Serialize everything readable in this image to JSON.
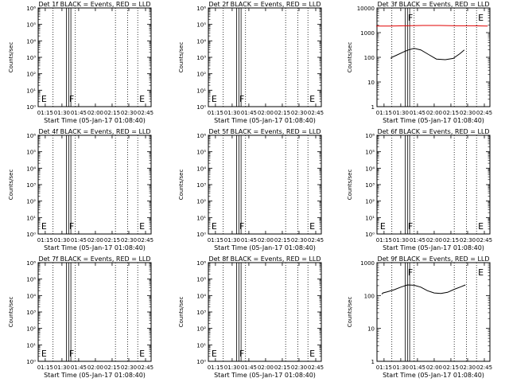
{
  "chart_data": [
    {
      "type": "line",
      "title": "Det 1f BLACK = Events, RED = LLD",
      "xlabel": "Start Time (05-Jan-17 01:08:40)",
      "ylabel": "Counts/sec",
      "yscale": "log",
      "ylim": [
        1,
        1000000
      ],
      "ytick_labels": [
        "10⁰",
        "10¹",
        "10²",
        "10³",
        "10⁴",
        "10⁵",
        "10⁶"
      ],
      "xtick_labels": [
        "01:15",
        "01:30",
        "01:45",
        "02:00",
        "02:15",
        "02:30",
        "02:45"
      ],
      "markers": [
        "E",
        "F",
        "E"
      ],
      "series": []
    },
    {
      "type": "line",
      "title": "Det 2f BLACK = Events, RED = LLD",
      "xlabel": "Start Time (05-Jan-17 01:08:40)",
      "ylabel": "Counts/sec",
      "yscale": "log",
      "ylim": [
        1,
        1000000
      ],
      "ytick_labels": [
        "10⁰",
        "10¹",
        "10²",
        "10³",
        "10⁴",
        "10⁵",
        "10⁶"
      ],
      "xtick_labels": [
        "01:15",
        "01:30",
        "01:45",
        "02:00",
        "02:15",
        "02:30",
        "02:45"
      ],
      "markers": [
        "E",
        "F",
        "E"
      ],
      "series": []
    },
    {
      "type": "line",
      "title": "Det 3f BLACK = Events, RED = LLD",
      "xlabel": "Start Time (05-Jan-17 01:08:40)",
      "ylabel": "Counts/sec",
      "yscale": "log",
      "ylim": [
        1,
        10000
      ],
      "ytick_labels": [
        "1",
        "10",
        "100",
        "1000",
        "10000"
      ],
      "xtick_labels": [
        "01:15",
        "01:30",
        "01:45",
        "02:00",
        "02:15",
        "02:30",
        "02:45"
      ],
      "markers": [
        "F",
        "E"
      ],
      "series": [
        {
          "color": "#000000",
          "x": [
            "01:21",
            "01:22",
            "01:26",
            "01:33",
            "01:37",
            "01:42",
            "01:48",
            "01:55",
            "02:02",
            "02:10",
            "02:17",
            "02:23",
            "02:27"
          ],
          "y": [
            90,
            100,
            120,
            170,
            200,
            230,
            200,
            130,
            85,
            80,
            90,
            140,
            200
          ]
        },
        {
          "color": "#e00000",
          "x": [
            "01:08",
            "01:20",
            "01:35",
            "01:50",
            "02:05",
            "02:20",
            "02:35",
            "02:48"
          ],
          "y": [
            1850,
            1850,
            1900,
            1950,
            1950,
            1900,
            1900,
            1850
          ]
        }
      ]
    },
    {
      "type": "line",
      "title": "Det 4f BLACK = Events, RED = LLD",
      "xlabel": "Start Time (05-Jan-17 01:08:40)",
      "ylabel": "Counts/sec",
      "yscale": "log",
      "ylim": [
        1,
        1000000
      ],
      "ytick_labels": [
        "10⁰",
        "10¹",
        "10²",
        "10³",
        "10⁴",
        "10⁵",
        "10⁶"
      ],
      "xtick_labels": [
        "01:15",
        "01:30",
        "01:45",
        "02:00",
        "02:15",
        "02:30",
        "02:45"
      ],
      "markers": [
        "E",
        "F",
        "E"
      ],
      "series": []
    },
    {
      "type": "line",
      "title": "Det 5f BLACK = Events, RED = LLD",
      "xlabel": "Start Time (05-Jan-17 01:08:40)",
      "ylabel": "Counts/sec",
      "yscale": "log",
      "ylim": [
        1,
        1000000
      ],
      "ytick_labels": [
        "10⁰",
        "10¹",
        "10²",
        "10³",
        "10⁴",
        "10⁵",
        "10⁶"
      ],
      "xtick_labels": [
        "01:15",
        "01:30",
        "01:45",
        "02:00",
        "02:15",
        "02:30",
        "02:45"
      ],
      "markers": [
        "E",
        "F",
        "E"
      ],
      "series": []
    },
    {
      "type": "line",
      "title": "Det 6f BLACK = Events, RED = LLD",
      "xlabel": "Start Time (05-Jan-17 01:08:40)",
      "ylabel": "Counts/sec",
      "yscale": "log",
      "ylim": [
        1,
        1000000
      ],
      "ytick_labels": [
        "10⁰",
        "10¹",
        "10²",
        "10³",
        "10⁴",
        "10⁵",
        "10⁶"
      ],
      "xtick_labels": [
        "01:15",
        "01:30",
        "01:45",
        "02:00",
        "02:15",
        "02:30",
        "02:45"
      ],
      "markers": [
        "E",
        "F",
        "E"
      ],
      "series": []
    },
    {
      "type": "line",
      "title": "Det 7f BLACK = Events, RED = LLD",
      "xlabel": "Start Time (05-Jan-17 01:08:40)",
      "ylabel": "Counts/sec",
      "yscale": "log",
      "ylim": [
        1,
        1000000
      ],
      "ytick_labels": [
        "10⁰",
        "10¹",
        "10²",
        "10³",
        "10⁴",
        "10⁵",
        "10⁶"
      ],
      "xtick_labels": [
        "01:15",
        "01:30",
        "01:45",
        "02:00",
        "02:15",
        "02:30",
        "02:45"
      ],
      "markers": [
        "E",
        "F",
        "E"
      ],
      "series": []
    },
    {
      "type": "line",
      "title": "Det 8f BLACK = Events, RED = LLD",
      "xlabel": "Start Time (05-Jan-17 01:08:40)",
      "ylabel": "Counts/sec",
      "yscale": "log",
      "ylim": [
        1,
        1000000
      ],
      "ytick_labels": [
        "10⁰",
        "10¹",
        "10²",
        "10³",
        "10⁴",
        "10⁵",
        "10⁶"
      ],
      "xtick_labels": [
        "01:15",
        "01:30",
        "01:45",
        "02:00",
        "02:15",
        "02:30",
        "02:45"
      ],
      "markers": [
        "E",
        "F",
        "E"
      ],
      "series": []
    },
    {
      "type": "line",
      "title": "Det 9f BLACK = Events, RED = LLD",
      "xlabel": "Start Time (05-Jan-17 01:08:40)",
      "ylabel": "Counts/sec",
      "yscale": "log",
      "ylim": [
        1,
        1000
      ],
      "ytick_labels": [
        "1",
        "10",
        "100",
        "1000"
      ],
      "xtick_labels": [
        "01:15",
        "01:30",
        "01:45",
        "02:00",
        "02:15",
        "02:30",
        "02:45"
      ],
      "markers": [
        "F",
        "E"
      ],
      "series": [
        {
          "color": "#000000",
          "x": [
            "01:13",
            "01:14",
            "01:18",
            "01:24",
            "01:30",
            "01:36",
            "01:42",
            "01:48",
            "01:54",
            "02:00",
            "02:06",
            "02:12",
            "02:18",
            "02:24",
            "02:28"
          ],
          "y": [
            110,
            120,
            130,
            150,
            180,
            210,
            205,
            180,
            140,
            120,
            115,
            125,
            155,
            185,
            210
          ]
        }
      ]
    }
  ]
}
